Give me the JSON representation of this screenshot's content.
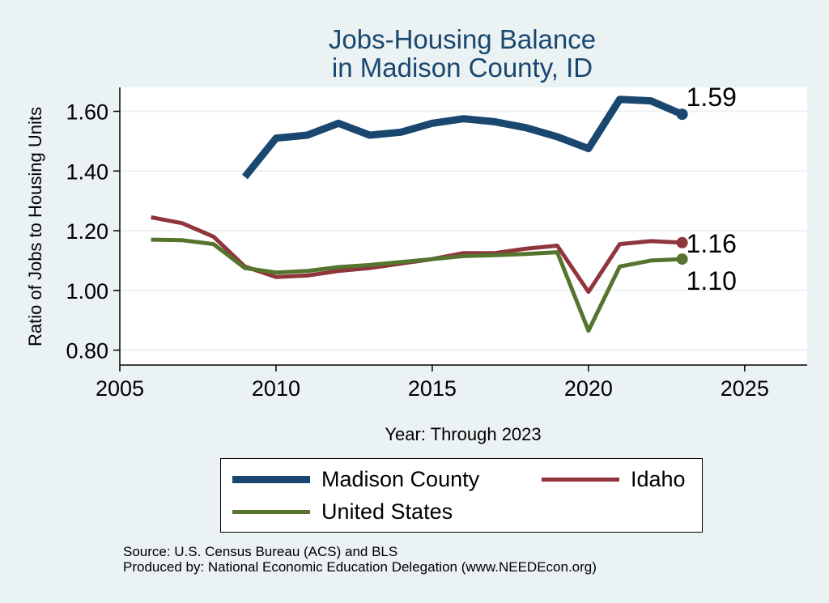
{
  "chart_data": {
    "type": "line",
    "title_lines": [
      "Jobs-Housing Balance",
      "in Madison County, ID"
    ],
    "xlabel": "Year: Through 2023",
    "ylabel": "Ratio of Jobs to Housing Units",
    "xlim": [
      2005,
      2027
    ],
    "ylim": [
      0.75,
      1.68
    ],
    "xticks": [
      2005,
      2010,
      2015,
      2020,
      2025
    ],
    "yticks": [
      0.8,
      1.0,
      1.2,
      1.4,
      1.6
    ],
    "ytick_labels": [
      "0.80",
      "1.00",
      "1.20",
      "1.40",
      "1.60"
    ],
    "grid": true,
    "legend_position": "bottom",
    "series": [
      {
        "name": "Madison County",
        "color": "#1a476f",
        "x": [
          2009,
          2010,
          2011,
          2012,
          2013,
          2014,
          2015,
          2016,
          2017,
          2018,
          2019,
          2020,
          2021,
          2022,
          2023
        ],
        "y": [
          1.38,
          1.51,
          1.52,
          1.56,
          1.52,
          1.53,
          1.56,
          1.575,
          1.565,
          1.545,
          1.515,
          1.475,
          1.64,
          1.635,
          1.59
        ],
        "end_label": "1.59"
      },
      {
        "name": "Idaho",
        "color": "#90353b",
        "x": [
          2006,
          2007,
          2008,
          2009,
          2010,
          2011,
          2012,
          2013,
          2014,
          2015,
          2016,
          2017,
          2018,
          2019,
          2020,
          2021,
          2022,
          2023
        ],
        "y": [
          1.245,
          1.225,
          1.18,
          1.08,
          1.045,
          1.05,
          1.065,
          1.075,
          1.09,
          1.105,
          1.125,
          1.125,
          1.14,
          1.15,
          0.995,
          1.155,
          1.165,
          1.16
        ],
        "end_label": "1.16"
      },
      {
        "name": "United States",
        "color": "#55752f",
        "x": [
          2006,
          2007,
          2008,
          2009,
          2010,
          2011,
          2012,
          2013,
          2014,
          2015,
          2016,
          2017,
          2018,
          2019,
          2020,
          2021,
          2022,
          2023
        ],
        "y": [
          1.17,
          1.168,
          1.155,
          1.075,
          1.06,
          1.065,
          1.078,
          1.085,
          1.095,
          1.105,
          1.115,
          1.118,
          1.122,
          1.128,
          0.865,
          1.08,
          1.1,
          1.105
        ],
        "end_label": "1.10"
      }
    ]
  },
  "source_lines": [
    "Source: U.S. Census Bureau (ACS) and BLS",
    "Produced by: National Economic Education Delegation (www.NEEDEcon.org)"
  ]
}
